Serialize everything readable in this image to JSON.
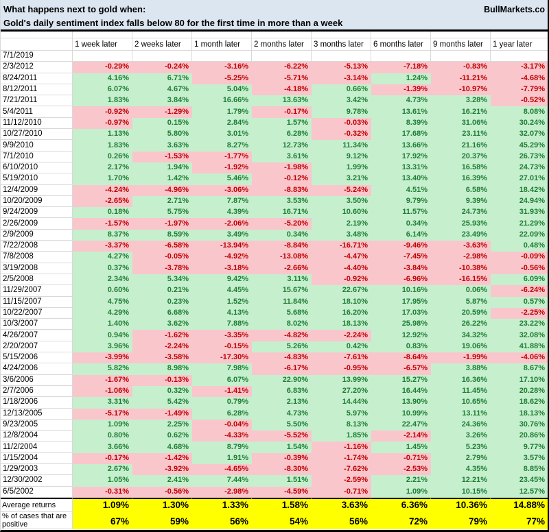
{
  "header": {
    "title_line1": "What happens next to gold when:",
    "brand": "BullMarkets.co",
    "title_line2": "Gold's daily sentiment index falls below 80 for the first time in more than a week"
  },
  "colors": {
    "header_bg": "#dce6f1",
    "grid": "#d9d9d9",
    "positive_bg": "#c6efce",
    "positive_text": "#1e7e34",
    "negative_bg": "#f9c6cc",
    "negative_text": "#c00000",
    "summary_bg": "#ffff00"
  },
  "table": {
    "columns": [
      "1 week later",
      "2 weeks later",
      "1 month later",
      "2 months later",
      "3 months later",
      "6 months later",
      "9 months later",
      "1 year later"
    ],
    "rows": [
      {
        "date": "7/1/2019",
        "values": []
      },
      {
        "date": "2/3/2012",
        "values": [
          "-0.29%",
          "-0.24%",
          "-3.16%",
          "-6.22%",
          "-5.13%",
          "-7.18%",
          "-0.83%",
          "-3.17%"
        ]
      },
      {
        "date": "8/24/2011",
        "values": [
          "4.16%",
          "6.71%",
          "-5.25%",
          "-5.71%",
          "-3.14%",
          "1.24%",
          "-11.21%",
          "-4.68%"
        ]
      },
      {
        "date": "8/12/2011",
        "values": [
          "6.07%",
          "4.67%",
          "5.04%",
          "-4.18%",
          "0.66%",
          "-1.39%",
          "-10.97%",
          "-7.79%"
        ]
      },
      {
        "date": "7/21/2011",
        "values": [
          "1.83%",
          "3.84%",
          "16.66%",
          "13.63%",
          "3.42%",
          "4.73%",
          "3.28%",
          "-0.52%"
        ]
      },
      {
        "date": "5/4/2011",
        "values": [
          "-0.92%",
          "-1.29%",
          "1.79%",
          "-0.17%",
          "9.78%",
          "13.61%",
          "16.21%",
          "8.08%"
        ]
      },
      {
        "date": "11/12/2010",
        "values": [
          "-0.97%",
          "0.15%",
          "2.84%",
          "1.57%",
          "-0.03%",
          "8.39%",
          "31.06%",
          "30.24%"
        ]
      },
      {
        "date": "10/27/2010",
        "values": [
          "1.13%",
          "5.80%",
          "3.01%",
          "6.28%",
          "-0.32%",
          "17.68%",
          "23.11%",
          "32.07%"
        ]
      },
      {
        "date": "9/9/2010",
        "values": [
          "1.83%",
          "3.63%",
          "8.27%",
          "12.73%",
          "11.34%",
          "13.66%",
          "21.16%",
          "45.29%"
        ]
      },
      {
        "date": "7/1/2010",
        "values": [
          "0.26%",
          "-1.53%",
          "-1.77%",
          "3.61%",
          "9.12%",
          "17.92%",
          "20.37%",
          "26.73%"
        ]
      },
      {
        "date": "6/10/2010",
        "values": [
          "2.17%",
          "1.94%",
          "-1.92%",
          "-1.98%",
          "1.99%",
          "13.31%",
          "16.58%",
          "24.73%"
        ]
      },
      {
        "date": "5/19/2010",
        "values": [
          "1.70%",
          "1.42%",
          "5.46%",
          "-0.12%",
          "3.21%",
          "13.40%",
          "16.39%",
          "27.01%"
        ]
      },
      {
        "date": "12/4/2009",
        "values": [
          "-4.24%",
          "-4.96%",
          "-3.06%",
          "-8.83%",
          "-5.24%",
          "4.51%",
          "6.58%",
          "18.42%"
        ]
      },
      {
        "date": "10/20/2009",
        "values": [
          "-2.65%",
          "2.71%",
          "7.87%",
          "3.53%",
          "3.50%",
          "9.79%",
          "9.39%",
          "24.94%"
        ]
      },
      {
        "date": "9/24/2009",
        "values": [
          "0.18%",
          "5.75%",
          "4.39%",
          "16.71%",
          "10.60%",
          "11.57%",
          "24.73%",
          "31.93%"
        ]
      },
      {
        "date": "2/26/2009",
        "values": [
          "-1.57%",
          "-1.97%",
          "-2.06%",
          "-5.20%",
          "2.19%",
          "0.34%",
          "25.93%",
          "21.29%"
        ]
      },
      {
        "date": "2/9/2009",
        "values": [
          "8.37%",
          "8.59%",
          "3.49%",
          "0.34%",
          "3.48%",
          "6.14%",
          "23.49%",
          "22.09%"
        ]
      },
      {
        "date": "7/22/2008",
        "values": [
          "-3.37%",
          "-6.58%",
          "-13.94%",
          "-8.84%",
          "-16.71%",
          "-9.46%",
          "-3.63%",
          "0.48%"
        ]
      },
      {
        "date": "7/8/2008",
        "values": [
          "4.27%",
          "-0.05%",
          "-4.92%",
          "-13.08%",
          "-4.47%",
          "-7.45%",
          "-2.98%",
          "-0.09%"
        ]
      },
      {
        "date": "3/19/2008",
        "values": [
          "0.37%",
          "-3.78%",
          "-3.18%",
          "-2.66%",
          "-4.40%",
          "-3.84%",
          "-10.38%",
          "-0.56%"
        ]
      },
      {
        "date": "2/5/2008",
        "values": [
          "2.34%",
          "5.34%",
          "9.42%",
          "3.11%",
          "-0.92%",
          "-6.96%",
          "-16.15%",
          "6.09%"
        ]
      },
      {
        "date": "11/29/2007",
        "values": [
          "0.60%",
          "0.21%",
          "4.45%",
          "15.67%",
          "22.67%",
          "10.16%",
          "0.06%",
          "-6.24%"
        ]
      },
      {
        "date": "11/15/2007",
        "values": [
          "4.75%",
          "0.23%",
          "1.52%",
          "11.84%",
          "18.10%",
          "17.95%",
          "5.87%",
          "0.57%"
        ]
      },
      {
        "date": "10/22/2007",
        "values": [
          "4.29%",
          "6.68%",
          "4.13%",
          "5.68%",
          "16.20%",
          "17.03%",
          "20.59%",
          "-2.25%"
        ]
      },
      {
        "date": "10/3/2007",
        "values": [
          "1.40%",
          "3.62%",
          "7.88%",
          "8.02%",
          "18.13%",
          "25.98%",
          "26.22%",
          "23.22%"
        ]
      },
      {
        "date": "4/26/2007",
        "values": [
          "0.94%",
          "-1.62%",
          "-3.35%",
          "-4.82%",
          "-2.24%",
          "12.92%",
          "34.32%",
          "32.08%"
        ]
      },
      {
        "date": "2/20/2007",
        "values": [
          "3.96%",
          "-2.24%",
          "-0.15%",
          "5.26%",
          "0.42%",
          "0.83%",
          "19.06%",
          "41.88%"
        ]
      },
      {
        "date": "5/15/2006",
        "values": [
          "-3.99%",
          "-3.58%",
          "-17.30%",
          "-4.83%",
          "-7.61%",
          "-8.64%",
          "-1.99%",
          "-4.06%"
        ]
      },
      {
        "date": "4/24/2006",
        "values": [
          "5.82%",
          "8.98%",
          "7.98%",
          "-6.17%",
          "-0.95%",
          "-6.57%",
          "3.88%",
          "8.67%"
        ]
      },
      {
        "date": "3/6/2006",
        "values": [
          "-1.67%",
          "-0.13%",
          "6.07%",
          "22.90%",
          "13.99%",
          "15.27%",
          "16.36%",
          "17.10%"
        ]
      },
      {
        "date": "2/7/2006",
        "values": [
          "-1.06%",
          "0.32%",
          "-1.41%",
          "6.83%",
          "27.20%",
          "16.44%",
          "11.45%",
          "20.28%"
        ]
      },
      {
        "date": "1/18/2006",
        "values": [
          "3.31%",
          "5.42%",
          "0.79%",
          "2.13%",
          "14.44%",
          "13.90%",
          "10.65%",
          "18.62%"
        ]
      },
      {
        "date": "12/13/2005",
        "values": [
          "-5.17%",
          "-1.49%",
          "6.28%",
          "4.73%",
          "5.97%",
          "10.99%",
          "13.11%",
          "18.13%"
        ]
      },
      {
        "date": "9/23/2005",
        "values": [
          "1.09%",
          "2.25%",
          "-0.04%",
          "5.50%",
          "8.13%",
          "22.47%",
          "24.36%",
          "30.76%"
        ]
      },
      {
        "date": "12/8/2004",
        "values": [
          "0.80%",
          "0.62%",
          "-4.33%",
          "-5.52%",
          "1.85%",
          "-2.14%",
          "3.26%",
          "20.86%"
        ]
      },
      {
        "date": "11/2/2004",
        "values": [
          "3.66%",
          "4.68%",
          "8.79%",
          "1.54%",
          "-1.16%",
          "1.45%",
          "5.23%",
          "9.77%"
        ]
      },
      {
        "date": "1/15/2004",
        "values": [
          "-0.17%",
          "-1.42%",
          "1.91%",
          "-0.39%",
          "-1.74%",
          "-0.71%",
          "2.79%",
          "3.57%"
        ]
      },
      {
        "date": "1/29/2003",
        "values": [
          "2.67%",
          "-3.92%",
          "-4.65%",
          "-8.30%",
          "-7.62%",
          "-2.53%",
          "4.35%",
          "8.85%"
        ]
      },
      {
        "date": "12/30/2002",
        "values": [
          "1.05%",
          "2.41%",
          "7.44%",
          "1.51%",
          "-2.59%",
          "2.21%",
          "12.21%",
          "23.45%"
        ]
      },
      {
        "date": "6/5/2002",
        "values": [
          "-0.31%",
          "-0.56%",
          "-2.98%",
          "-4.59%",
          "-0.71%",
          "1.09%",
          "10.15%",
          "12.57%"
        ]
      }
    ],
    "summary": {
      "average_label": "Average returns",
      "averages": [
        "1.09%",
        "1.30%",
        "1.33%",
        "1.58%",
        "3.63%",
        "6.36%",
        "10.36%",
        "14.88%"
      ],
      "percent_label": "% of cases that are positive",
      "percents": [
        "67%",
        "59%",
        "56%",
        "54%",
        "56%",
        "72%",
        "79%",
        "77%"
      ]
    }
  }
}
